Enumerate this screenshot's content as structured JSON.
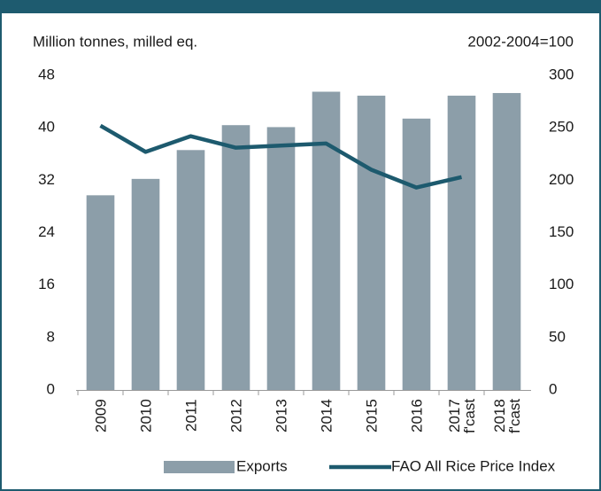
{
  "chart_data": {
    "type": "bar-line",
    "y_label": "Million tonnes, milled eq.",
    "y2_label": "2002-2004=100",
    "categories": [
      "2009",
      "2010",
      "2011",
      "2012",
      "2013",
      "2014",
      "2015",
      "2016",
      "2017\nf'cast",
      "2018\nf'cast"
    ],
    "series": [
      {
        "name": "Exports",
        "type": "bar",
        "color": "#8c9ea9",
        "values": [
          29.7,
          32.2,
          36.6,
          40.4,
          40.1,
          45.5,
          44.9,
          41.4,
          44.9,
          45.3
        ]
      },
      {
        "name": "FAO All Rice Price Index",
        "type": "line",
        "axis": "y2",
        "color": "#1d5a6e",
        "values": [
          252,
          227,
          242,
          231,
          233,
          235,
          210,
          193,
          203,
          null
        ]
      }
    ],
    "ylim": [
      0,
      48
    ],
    "yticks": [
      0,
      8,
      16,
      24,
      32,
      40,
      48
    ],
    "y2lim": [
      0,
      300
    ],
    "y2ticks": [
      0,
      50,
      100,
      150,
      200,
      250,
      300
    ]
  }
}
